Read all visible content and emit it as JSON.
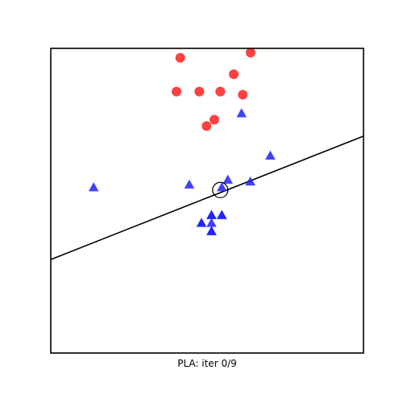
{
  "chart_data": {
    "type": "scatter",
    "title": "",
    "xlabel": "PLA: iter 0/9",
    "ylabel": "",
    "xlim": [
      0,
      10
    ],
    "ylim": [
      0,
      10
    ],
    "grid": false,
    "axis_ticks": false,
    "series": [
      {
        "marker": "circle",
        "color": "#ff2020",
        "points": [
          [
            4.14,
            9.69
          ],
          [
            6.39,
            9.86
          ],
          [
            5.85,
            9.15
          ],
          [
            4.02,
            8.58
          ],
          [
            4.75,
            8.58
          ],
          [
            5.42,
            8.58
          ],
          [
            6.14,
            8.48
          ],
          [
            5.23,
            7.66
          ],
          [
            4.98,
            7.45
          ]
        ]
      },
      {
        "marker": "triangle",
        "color": "#2020ff",
        "points": [
          [
            6.1,
            7.85
          ],
          [
            7.02,
            6.46
          ],
          [
            5.66,
            5.67
          ],
          [
            6.38,
            5.61
          ],
          [
            1.37,
            5.42
          ],
          [
            4.43,
            5.51
          ],
          [
            5.47,
            5.42
          ],
          [
            5.47,
            4.51
          ],
          [
            5.14,
            4.25
          ],
          [
            5.14,
            4.51
          ],
          [
            4.82,
            4.25
          ],
          [
            5.14,
            3.98
          ],
          [
            5.47,
            4.51
          ],
          [
            5.14,
            4.51
          ],
          [
            4.82,
            4.25
          ],
          [
            5.14,
            3.98
          ]
        ]
      }
    ],
    "decision_boundary": [
      [
        0,
        3.07
      ],
      [
        10,
        7.12
      ]
    ],
    "highlight_point": [
      5.42,
      5.35
    ]
  }
}
